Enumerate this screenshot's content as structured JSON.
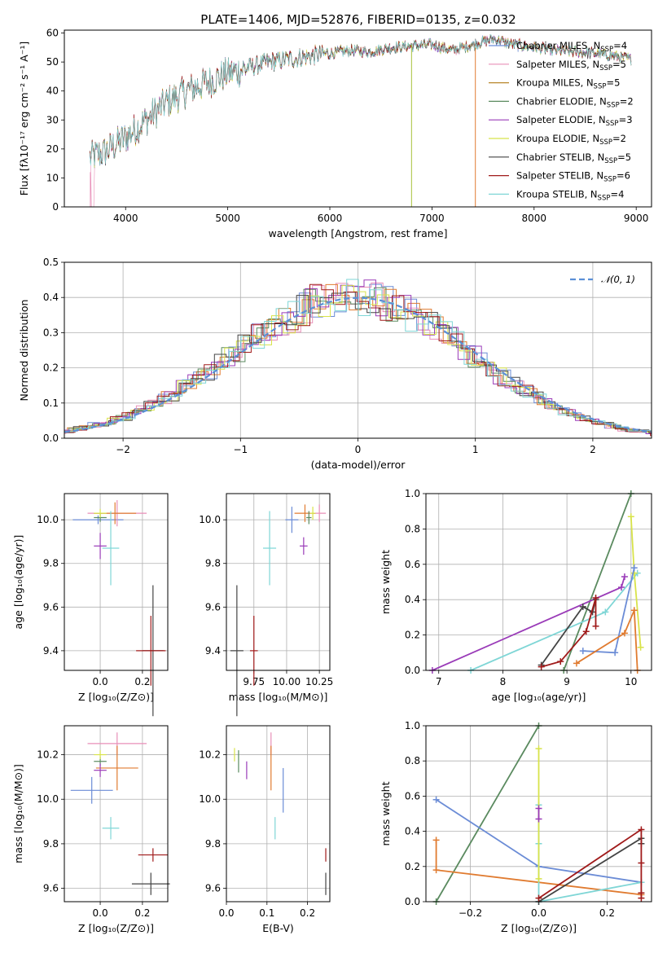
{
  "chart_data": [
    {
      "id": "spectrum",
      "type": "line",
      "title": "PLATE=1406, MJD=52876, FIBERID=0135, z=0.032",
      "xlabel": "wavelength [Angstrom, rest frame]",
      "ylabel": "Flux [fλ10⁻¹⁷ erg cm⁻² s⁻¹ A⁻¹]",
      "xlim": [
        3400,
        9150
      ],
      "ylim": [
        0,
        61
      ],
      "xticks": [
        4000,
        5000,
        6000,
        7000,
        8000,
        9000
      ],
      "yticks": [
        0,
        10,
        20,
        30,
        40,
        50,
        60
      ],
      "grid": false,
      "legend_position": "upper right",
      "continuum": {
        "x": [
          3650,
          3800,
          4000,
          4200,
          4400,
          4600,
          4800,
          5000,
          5200,
          5400,
          5600,
          5800,
          6000,
          6200,
          6400,
          6600,
          6800,
          7000,
          7200,
          7400,
          7600,
          7800,
          8000,
          8200,
          8400,
          8600,
          8800,
          8950
        ],
        "y": [
          17,
          19,
          24,
          30,
          36,
          40,
          43,
          46,
          48,
          50,
          51,
          52,
          53,
          54,
          53.5,
          55,
          55.5,
          56,
          54,
          56,
          58,
          56,
          55,
          54,
          53.5,
          53,
          52,
          51
        ]
      },
      "series": [
        {
          "name": "Chabrier MILES, N_SSP=4",
          "color": "#6b8cd6"
        },
        {
          "name": "Salpeter MILES, N_SSP=5",
          "color": "#e88fb8"
        },
        {
          "name": "Kroupa MILES, N_SSP=5",
          "color": "#b8862a"
        },
        {
          "name": "Chabrier ELODIE, N_SSP=2",
          "color": "#5a8a5f"
        },
        {
          "name": "Salpeter ELODIE, N_SSP=3",
          "color": "#9a3bb8"
        },
        {
          "name": "Kroupa ELODIE, N_SSP=2",
          "color": "#d8e34a"
        },
        {
          "name": "Chabrier STELIB, N_SSP=5",
          "color": "#444444"
        },
        {
          "name": "Salpeter STELIB, N_SSP=6",
          "color": "#a01a1a"
        },
        {
          "name": "Kroupa STELIB, N_SSP=4",
          "color": "#7fd6d6"
        }
      ]
    },
    {
      "id": "residuals",
      "type": "line",
      "xlabel": "(data-model)/error",
      "ylabel": "Normed distribution",
      "xlim": [
        -2.5,
        2.5
      ],
      "ylim": [
        0,
        0.5
      ],
      "xticks": [
        -2,
        -1,
        0,
        1,
        2
      ],
      "yticks": [
        0.0,
        0.1,
        0.2,
        0.3,
        0.4,
        0.5
      ],
      "grid": true,
      "legend_position": "upper right",
      "legend": "𝒩(0, 1)",
      "gaussian": {
        "mean": 0,
        "sigma": 1,
        "color": "#5b8fd6"
      },
      "hist_colors": [
        "#6b8cd6",
        "#e88fb8",
        "#e07b30",
        "#5a8a5f",
        "#9a3bb8",
        "#d8e34a",
        "#444444",
        "#a01a1a",
        "#7fd6d6"
      ]
    },
    {
      "id": "age-vs-Z",
      "type": "scatter",
      "xlabel": "Z [log₁₀(Z/Z⊙)]",
      "ylabel": "age  [log₁₀(age/yr)]",
      "xlim": [
        -0.17,
        0.32
      ],
      "ylim": [
        9.31,
        10.12
      ],
      "xticks": [
        0.0,
        0.2
      ],
      "yticks": [
        9.4,
        9.6,
        9.8,
        10.0
      ],
      "points": [
        {
          "x": -0.01,
          "y": 10.0,
          "xerr": 0.12,
          "yerr": 0.02,
          "color": "#6b8cd6"
        },
        {
          "x": 0.08,
          "y": 10.03,
          "xerr": 0.14,
          "yerr": 0.06,
          "color": "#e88fb8"
        },
        {
          "x": 0.07,
          "y": 10.03,
          "xerr": 0.1,
          "yerr": 0.05,
          "color": "#e07b30"
        },
        {
          "x": 0.0,
          "y": 10.01,
          "xerr": 0.03,
          "yerr": 0.02,
          "color": "#5a8a5f"
        },
        {
          "x": 0.0,
          "y": 9.88,
          "xerr": 0.03,
          "yerr": 0.06,
          "color": "#9a3bb8"
        },
        {
          "x": 0.0,
          "y": 10.03,
          "xerr": 0.03,
          "yerr": 0.02,
          "color": "#d8e34a"
        },
        {
          "x": 0.25,
          "y": 9.4,
          "xerr": 0.05,
          "yerr": 0.3,
          "color": "#444444"
        },
        {
          "x": 0.24,
          "y": 9.4,
          "xerr": 0.07,
          "yerr": 0.16,
          "color": "#a01a1a"
        },
        {
          "x": 0.05,
          "y": 9.87,
          "xerr": 0.04,
          "yerr": 0.17,
          "color": "#7fd6d6"
        }
      ]
    },
    {
      "id": "age-vs-mass",
      "type": "scatter",
      "xlabel": "mass [log₁₀(M/M⊙)]",
      "ylabel": "",
      "xlim": [
        9.54,
        10.33
      ],
      "ylim": [
        9.31,
        10.12
      ],
      "xticks": [
        9.75,
        10.0,
        10.25
      ],
      "yticks": [
        9.4,
        9.6,
        9.8,
        10.0
      ],
      "points": [
        {
          "x": 10.04,
          "y": 10.0,
          "xerr": 0.05,
          "yerr": 0.06,
          "color": "#6b8cd6"
        },
        {
          "x": 10.25,
          "y": 10.03,
          "xerr": 0.05,
          "yerr": 0.04,
          "color": "#e88fb8"
        },
        {
          "x": 10.14,
          "y": 10.03,
          "xerr": 0.08,
          "yerr": 0.04,
          "color": "#e07b30"
        },
        {
          "x": 10.17,
          "y": 10.01,
          "xerr": 0.02,
          "yerr": 0.03,
          "color": "#5a8a5f"
        },
        {
          "x": 10.13,
          "y": 9.88,
          "xerr": 0.03,
          "yerr": 0.04,
          "color": "#9a3bb8"
        },
        {
          "x": 10.2,
          "y": 10.03,
          "xerr": 0.02,
          "yerr": 0.03,
          "color": "#d8e34a"
        },
        {
          "x": 9.62,
          "y": 9.4,
          "xerr": 0.05,
          "yerr": 0.3,
          "color": "#444444"
        },
        {
          "x": 9.75,
          "y": 9.4,
          "xerr": 0.03,
          "yerr": 0.16,
          "color": "#a01a1a"
        },
        {
          "x": 9.87,
          "y": 9.87,
          "xerr": 0.05,
          "yerr": 0.17,
          "color": "#7fd6d6"
        }
      ]
    },
    {
      "id": "weight-vs-age",
      "type": "line",
      "xlabel": "age  [log₁₀(age/yr)]",
      "ylabel": "mass weight",
      "xlim": [
        6.8,
        10.32
      ],
      "ylim": [
        0,
        1
      ],
      "xticks": [
        7,
        8,
        9,
        10
      ],
      "yticks": [
        0.0,
        0.2,
        0.4,
        0.6,
        0.8,
        1.0
      ],
      "grid": true,
      "series": [
        {
          "color": "#5a8a5f",
          "points": [
            [
              8.95,
              0
            ],
            [
              10.0,
              1.0
            ]
          ]
        },
        {
          "color": "#9a3bb8",
          "points": [
            [
              6.9,
              0.0
            ],
            [
              9.85,
              0.47
            ],
            [
              9.9,
              0.53
            ]
          ]
        },
        {
          "color": "#7fd6d6",
          "points": [
            [
              7.5,
              0.0
            ],
            [
              9.6,
              0.33
            ],
            [
              10.1,
              0.55
            ]
          ]
        },
        {
          "color": "#d8e34a",
          "points": [
            [
              10.0,
              0.87
            ],
            [
              10.05,
              0.55
            ],
            [
              10.15,
              0.13
            ]
          ]
        },
        {
          "color": "#6b8cd6",
          "points": [
            [
              9.25,
              0.11
            ],
            [
              9.75,
              0.1
            ],
            [
              10.05,
              0.58
            ]
          ]
        },
        {
          "color": "#e07b30",
          "points": [
            [
              9.15,
              0.04
            ],
            [
              9.9,
              0.21
            ],
            [
              10.05,
              0.34
            ],
            [
              10.1,
              0.0
            ]
          ]
        },
        {
          "color": "#444444",
          "points": [
            [
              8.6,
              0.03
            ],
            [
              9.25,
              0.36
            ],
            [
              9.4,
              0.33
            ],
            [
              9.45,
              0.4
            ]
          ]
        },
        {
          "color": "#a01a1a",
          "points": [
            [
              8.6,
              0.02
            ],
            [
              8.9,
              0.05
            ],
            [
              9.3,
              0.22
            ],
            [
              9.45,
              0.41
            ],
            [
              9.45,
              0.25
            ]
          ]
        }
      ]
    },
    {
      "id": "mass-vs-Z",
      "type": "scatter",
      "xlabel": "Z [log₁₀(Z/Z⊙)]",
      "ylabel": "mass [log₁₀(M/M⊙)]",
      "xlim": [
        -0.17,
        0.32
      ],
      "ylim": [
        9.54,
        10.33
      ],
      "xticks": [
        0.0,
        0.2
      ],
      "yticks": [
        9.6,
        9.8,
        10.0,
        10.2
      ],
      "points": [
        {
          "x": -0.04,
          "y": 10.04,
          "xerr": 0.1,
          "yerr": 0.06,
          "color": "#6b8cd6"
        },
        {
          "x": 0.08,
          "y": 10.25,
          "xerr": 0.14,
          "yerr": 0.05,
          "color": "#e88fb8"
        },
        {
          "x": 0.08,
          "y": 10.14,
          "xerr": 0.1,
          "yerr": 0.1,
          "color": "#e07b30"
        },
        {
          "x": 0.0,
          "y": 10.17,
          "xerr": 0.03,
          "yerr": 0.02,
          "color": "#5a8a5f"
        },
        {
          "x": 0.0,
          "y": 10.13,
          "xerr": 0.03,
          "yerr": 0.03,
          "color": "#9a3bb8"
        },
        {
          "x": 0.0,
          "y": 10.2,
          "xerr": 0.03,
          "yerr": 0.02,
          "color": "#d8e34a"
        },
        {
          "x": 0.24,
          "y": 9.62,
          "xerr": 0.09,
          "yerr": 0.05,
          "color": "#444444"
        },
        {
          "x": 0.25,
          "y": 9.75,
          "xerr": 0.07,
          "yerr": 0.03,
          "color": "#a01a1a"
        },
        {
          "x": 0.05,
          "y": 9.87,
          "xerr": 0.04,
          "yerr": 0.05,
          "color": "#7fd6d6"
        }
      ]
    },
    {
      "id": "mass-vs-EBV",
      "type": "scatter",
      "xlabel": "E(B-V)",
      "ylabel": "",
      "xlim": [
        0.0,
        0.255
      ],
      "ylim": [
        9.54,
        10.33
      ],
      "xticks": [
        0.0,
        0.1,
        0.2
      ],
      "yticks": [
        9.6,
        9.8,
        10.0,
        10.2
      ],
      "points": [
        {
          "x": 0.14,
          "y": 10.04,
          "xerr": 0.0,
          "yerr": 0.1,
          "color": "#6b8cd6"
        },
        {
          "x": 0.11,
          "y": 10.25,
          "xerr": 0.0,
          "yerr": 0.05,
          "color": "#e88fb8"
        },
        {
          "x": 0.11,
          "y": 10.14,
          "xerr": 0.0,
          "yerr": 0.1,
          "color": "#e07b30"
        },
        {
          "x": 0.03,
          "y": 10.17,
          "xerr": 0.0,
          "yerr": 0.05,
          "color": "#5a8a5f"
        },
        {
          "x": 0.05,
          "y": 10.13,
          "xerr": 0.0,
          "yerr": 0.04,
          "color": "#9a3bb8"
        },
        {
          "x": 0.02,
          "y": 10.2,
          "xerr": 0.0,
          "yerr": 0.03,
          "color": "#d8e34a"
        },
        {
          "x": 0.245,
          "y": 9.62,
          "xerr": 0.0,
          "yerr": 0.05,
          "color": "#444444"
        },
        {
          "x": 0.245,
          "y": 9.75,
          "xerr": 0.0,
          "yerr": 0.03,
          "color": "#a01a1a"
        },
        {
          "x": 0.12,
          "y": 9.87,
          "xerr": 0.0,
          "yerr": 0.05,
          "color": "#7fd6d6"
        }
      ]
    },
    {
      "id": "weight-vs-Z",
      "type": "line",
      "xlabel": "Z [log₁₀(Z/Z⊙)]",
      "ylabel": "mass weight",
      "xlim": [
        -0.33,
        0.33
      ],
      "ylim": [
        0,
        1
      ],
      "xticks": [
        -0.2,
        0.0,
        0.2
      ],
      "yticks": [
        0.0,
        0.2,
        0.4,
        0.6,
        0.8,
        1.0
      ],
      "grid": true,
      "series": [
        {
          "color": "#5a8a5f",
          "points": [
            [
              -0.3,
              0.0
            ],
            [
              0.0,
              1.0
            ]
          ]
        },
        {
          "color": "#6b8cd6",
          "points": [
            [
              -0.3,
              0.58
            ],
            [
              0.0,
              0.2
            ],
            [
              0.3,
              0.11
            ]
          ]
        },
        {
          "color": "#e07b30",
          "points": [
            [
              -0.3,
              0.35
            ],
            [
              -0.3,
              0.18
            ],
            [
              0.3,
              0.04
            ]
          ]
        },
        {
          "color": "#7fd6d6",
          "points": [
            [
              0.0,
              0.55
            ],
            [
              0.0,
              0.33
            ],
            [
              0.0,
              0.0
            ],
            [
              0.3,
              0.11
            ]
          ]
        },
        {
          "color": "#d8e34a",
          "points": [
            [
              0.0,
              0.87
            ],
            [
              0.0,
              0.13
            ]
          ]
        },
        {
          "color": "#9a3bb8",
          "points": [
            [
              0.0,
              0.53
            ],
            [
              0.0,
              0.47
            ]
          ]
        },
        {
          "color": "#444444",
          "points": [
            [
              0.0,
              0.0
            ],
            [
              0.3,
              0.36
            ],
            [
              0.3,
              0.33
            ]
          ]
        },
        {
          "color": "#a01a1a",
          "points": [
            [
              0.0,
              0.02
            ],
            [
              0.3,
              0.41
            ],
            [
              0.3,
              0.22
            ],
            [
              0.3,
              0.05
            ],
            [
              0.3,
              0.02
            ]
          ]
        }
      ]
    }
  ]
}
